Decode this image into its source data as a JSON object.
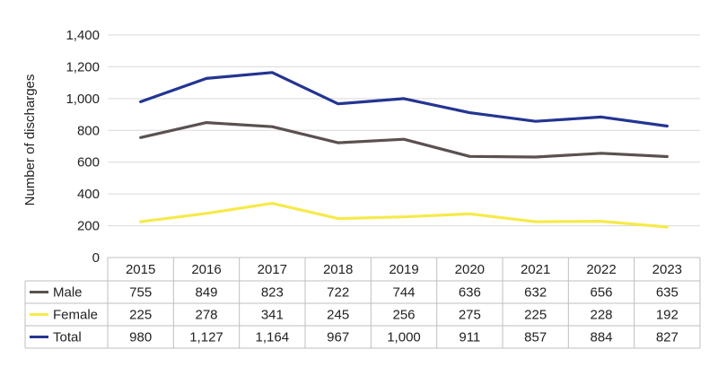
{
  "chart_data": {
    "type": "line",
    "title": "",
    "xlabel": "",
    "ylabel": "Number of discharges",
    "ylim": [
      0,
      1400
    ],
    "yticks": [
      "0",
      "200",
      "400",
      "600",
      "800",
      "1,000",
      "1,200",
      "1,400"
    ],
    "categories": [
      "2015",
      "2016",
      "2017",
      "2018",
      "2019",
      "2020",
      "2021",
      "2022",
      "2023"
    ],
    "grid": true,
    "legend": "data-table-left",
    "series": [
      {
        "name": "Male",
        "color": "#5a5150",
        "values": [
          755,
          849,
          823,
          722,
          744,
          636,
          632,
          656,
          635
        ],
        "labels": [
          "755",
          "849",
          "823",
          "722",
          "744",
          "636",
          "632",
          "656",
          "635"
        ]
      },
      {
        "name": "Female",
        "color": "#f5ea4a",
        "values": [
          225,
          278,
          341,
          245,
          256,
          275,
          225,
          228,
          192
        ],
        "labels": [
          "225",
          "278",
          "341",
          "245",
          "256",
          "275",
          "225",
          "228",
          "192"
        ]
      },
      {
        "name": "Total",
        "color": "#233591",
        "values": [
          980,
          1127,
          1164,
          967,
          1000,
          911,
          857,
          884,
          827
        ],
        "labels": [
          "980",
          "1,127",
          "1,164",
          "967",
          "1,000",
          "911",
          "857",
          "884",
          "827"
        ]
      }
    ]
  }
}
